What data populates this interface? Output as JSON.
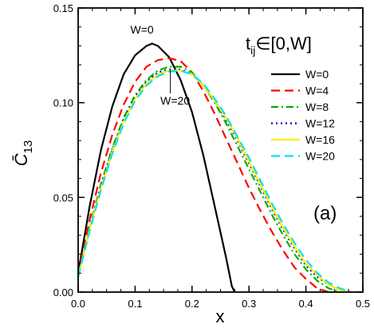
{
  "chart_data": {
    "type": "line",
    "title": "",
    "xlabel": "x",
    "ylabel": "C̄13",
    "xlim": [
      0,
      0.5
    ],
    "ylim": [
      0,
      0.15
    ],
    "x_ticks": [
      "0.0",
      "0.1",
      "0.2",
      "0.3",
      "0.4",
      "0.5"
    ],
    "y_ticks": [
      "0.00",
      "0.05",
      "0.10",
      "0.15"
    ],
    "legend_position": "top-right",
    "grid": false,
    "panel_label": "(a)",
    "inset_text": {
      "t": "t",
      "sub": "ij",
      "rest": "∈[0,W]"
    },
    "annotations": [
      {
        "text": "W=0",
        "x": 0.129,
        "y": 0.1315
      },
      {
        "text": "W=20",
        "x": 0.162,
        "y": 0.1175
      }
    ],
    "series": [
      {
        "name": "W=0",
        "color": "#000000",
        "dash": "solid",
        "points": [
          [
            0.0,
            0.01
          ],
          [
            0.02,
            0.045
          ],
          [
            0.04,
            0.075
          ],
          [
            0.06,
            0.098
          ],
          [
            0.08,
            0.115
          ],
          [
            0.1,
            0.125
          ],
          [
            0.12,
            0.13
          ],
          [
            0.13,
            0.1312
          ],
          [
            0.14,
            0.13
          ],
          [
            0.16,
            0.124
          ],
          [
            0.18,
            0.112
          ],
          [
            0.2,
            0.095
          ],
          [
            0.22,
            0.072
          ],
          [
            0.24,
            0.045
          ],
          [
            0.26,
            0.018
          ],
          [
            0.27,
            0.003
          ],
          [
            0.275,
            0.0
          ]
        ]
      },
      {
        "name": "W=4",
        "color": "#ff0000",
        "dash": "long",
        "points": [
          [
            0.0,
            0.009
          ],
          [
            0.02,
            0.038
          ],
          [
            0.04,
            0.063
          ],
          [
            0.06,
            0.083
          ],
          [
            0.08,
            0.099
          ],
          [
            0.1,
            0.111
          ],
          [
            0.12,
            0.119
          ],
          [
            0.14,
            0.1225
          ],
          [
            0.16,
            0.1235
          ],
          [
            0.18,
            0.122
          ],
          [
            0.2,
            0.116
          ],
          [
            0.22,
            0.106
          ],
          [
            0.24,
            0.094
          ],
          [
            0.26,
            0.081
          ],
          [
            0.28,
            0.068
          ],
          [
            0.3,
            0.055
          ],
          [
            0.32,
            0.043
          ],
          [
            0.34,
            0.032
          ],
          [
            0.36,
            0.022
          ],
          [
            0.38,
            0.013
          ],
          [
            0.4,
            0.007
          ],
          [
            0.42,
            0.002
          ],
          [
            0.44,
            0.0
          ]
        ]
      },
      {
        "name": "W=8",
        "color": "#00b000",
        "dash": "dashdot",
        "points": [
          [
            0.0,
            0.008
          ],
          [
            0.02,
            0.034
          ],
          [
            0.04,
            0.057
          ],
          [
            0.06,
            0.076
          ],
          [
            0.08,
            0.092
          ],
          [
            0.1,
            0.104
          ],
          [
            0.12,
            0.112
          ],
          [
            0.14,
            0.117
          ],
          [
            0.16,
            0.119
          ],
          [
            0.18,
            0.119
          ],
          [
            0.2,
            0.116
          ],
          [
            0.22,
            0.109
          ],
          [
            0.24,
            0.1
          ],
          [
            0.26,
            0.089
          ],
          [
            0.28,
            0.077
          ],
          [
            0.3,
            0.065
          ],
          [
            0.32,
            0.053
          ],
          [
            0.34,
            0.041
          ],
          [
            0.36,
            0.03
          ],
          [
            0.38,
            0.02
          ],
          [
            0.4,
            0.012
          ],
          [
            0.42,
            0.006
          ],
          [
            0.44,
            0.002
          ],
          [
            0.46,
            0.0
          ]
        ]
      },
      {
        "name": "W=12",
        "color": "#0000cc",
        "dash": "dotted",
        "points": [
          [
            0.0,
            0.008
          ],
          [
            0.02,
            0.033
          ],
          [
            0.04,
            0.056
          ],
          [
            0.06,
            0.075
          ],
          [
            0.08,
            0.091
          ],
          [
            0.1,
            0.103
          ],
          [
            0.12,
            0.111
          ],
          [
            0.14,
            0.116
          ],
          [
            0.16,
            0.1175
          ],
          [
            0.18,
            0.1175
          ],
          [
            0.2,
            0.115
          ],
          [
            0.22,
            0.109
          ],
          [
            0.24,
            0.101
          ],
          [
            0.26,
            0.091
          ],
          [
            0.28,
            0.08
          ],
          [
            0.3,
            0.068
          ],
          [
            0.32,
            0.056
          ],
          [
            0.34,
            0.044
          ],
          [
            0.36,
            0.033
          ],
          [
            0.38,
            0.023
          ],
          [
            0.4,
            0.014
          ],
          [
            0.42,
            0.008
          ],
          [
            0.44,
            0.004
          ],
          [
            0.46,
            0.001
          ],
          [
            0.48,
            0.0
          ]
        ]
      },
      {
        "name": "W=16",
        "color": "#ffee00",
        "dash": "solid",
        "points": [
          [
            0.0,
            0.008
          ],
          [
            0.02,
            0.033
          ],
          [
            0.04,
            0.055
          ],
          [
            0.06,
            0.074
          ],
          [
            0.08,
            0.09
          ],
          [
            0.1,
            0.102
          ],
          [
            0.12,
            0.11
          ],
          [
            0.14,
            0.115
          ],
          [
            0.16,
            0.117
          ],
          [
            0.18,
            0.117
          ],
          [
            0.2,
            0.115
          ],
          [
            0.22,
            0.109
          ],
          [
            0.24,
            0.101
          ],
          [
            0.26,
            0.092
          ],
          [
            0.28,
            0.081
          ],
          [
            0.3,
            0.069
          ],
          [
            0.32,
            0.057
          ],
          [
            0.34,
            0.045
          ],
          [
            0.36,
            0.034
          ],
          [
            0.38,
            0.024
          ],
          [
            0.4,
            0.015
          ],
          [
            0.42,
            0.009
          ],
          [
            0.44,
            0.004
          ],
          [
            0.46,
            0.001
          ],
          [
            0.48,
            0.0
          ]
        ]
      },
      {
        "name": "W=20",
        "color": "#00e0ff",
        "dash": "long",
        "points": [
          [
            0.0,
            0.008
          ],
          [
            0.02,
            0.032
          ],
          [
            0.04,
            0.054
          ],
          [
            0.06,
            0.073
          ],
          [
            0.08,
            0.089
          ],
          [
            0.1,
            0.101
          ],
          [
            0.12,
            0.109
          ],
          [
            0.14,
            0.114
          ],
          [
            0.16,
            0.1165
          ],
          [
            0.18,
            0.1168
          ],
          [
            0.2,
            0.115
          ],
          [
            0.22,
            0.11
          ],
          [
            0.24,
            0.102
          ],
          [
            0.26,
            0.093
          ],
          [
            0.28,
            0.082
          ],
          [
            0.3,
            0.071
          ],
          [
            0.32,
            0.059
          ],
          [
            0.34,
            0.047
          ],
          [
            0.36,
            0.036
          ],
          [
            0.38,
            0.026
          ],
          [
            0.4,
            0.017
          ],
          [
            0.42,
            0.01
          ],
          [
            0.44,
            0.005
          ],
          [
            0.46,
            0.002
          ],
          [
            0.48,
            0.0
          ]
        ]
      }
    ]
  }
}
